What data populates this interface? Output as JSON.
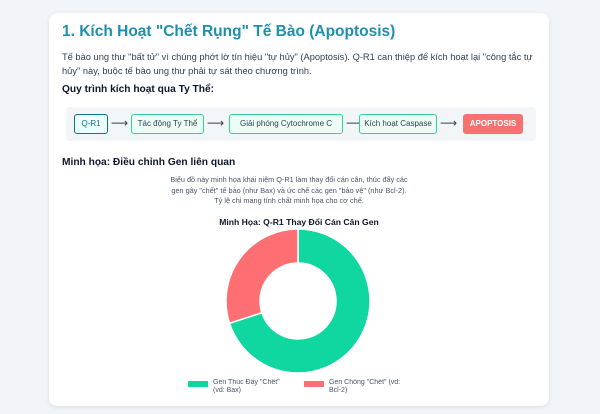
{
  "section": {
    "title": "1. Kích Hoạt \"Chết Rụng\" Tế Bào (Apoptosis)",
    "intro": "Tế bào ung thư \"bất tử\" vì chúng phớt lờ tín hiệu \"tự hủy\" (Apoptosis). Q-R1 can thiệp để kích hoạt lại \"công tắc tự hủy\" này, buộc tế bào ung thư phải tự sát theo chương trình."
  },
  "pathway": {
    "heading": "Quy trình kích hoạt qua Ty Thể:",
    "steps": [
      "Q-R1",
      "Tác động Ty Thể",
      "Giải phóng Cytochrome C",
      "Kích hoạt Caspase",
      "APOPTOSIS"
    ],
    "arrow": "⟶"
  },
  "illustration": {
    "heading": "Minh họa: Điều chỉnh Gen liên quan",
    "description": "Biểu đồ này minh họa khái niệm Q-R1 làm thay đổi cán cân, thúc đẩy các gen gây \"chết\" tế bào (như Bax) và ức chế các gen \"bảo vệ\" (như Bcl-2). Tỷ lệ chỉ mang tính chất minh họa cho cơ chế."
  },
  "chart_data": {
    "type": "pie",
    "title": "Minh Họa: Q-R1 Thay Đổi Cán Cân Gen",
    "labels": [
      "Gen Thúc Đẩy \"Chết\" (vd: Bax)",
      "Gen Chống \"Chết\" (vd: Bcl-2)"
    ],
    "values": [
      70,
      30
    ],
    "colors": [
      "#10d6a0",
      "#fd6f72"
    ],
    "legend_position": "bottom"
  }
}
